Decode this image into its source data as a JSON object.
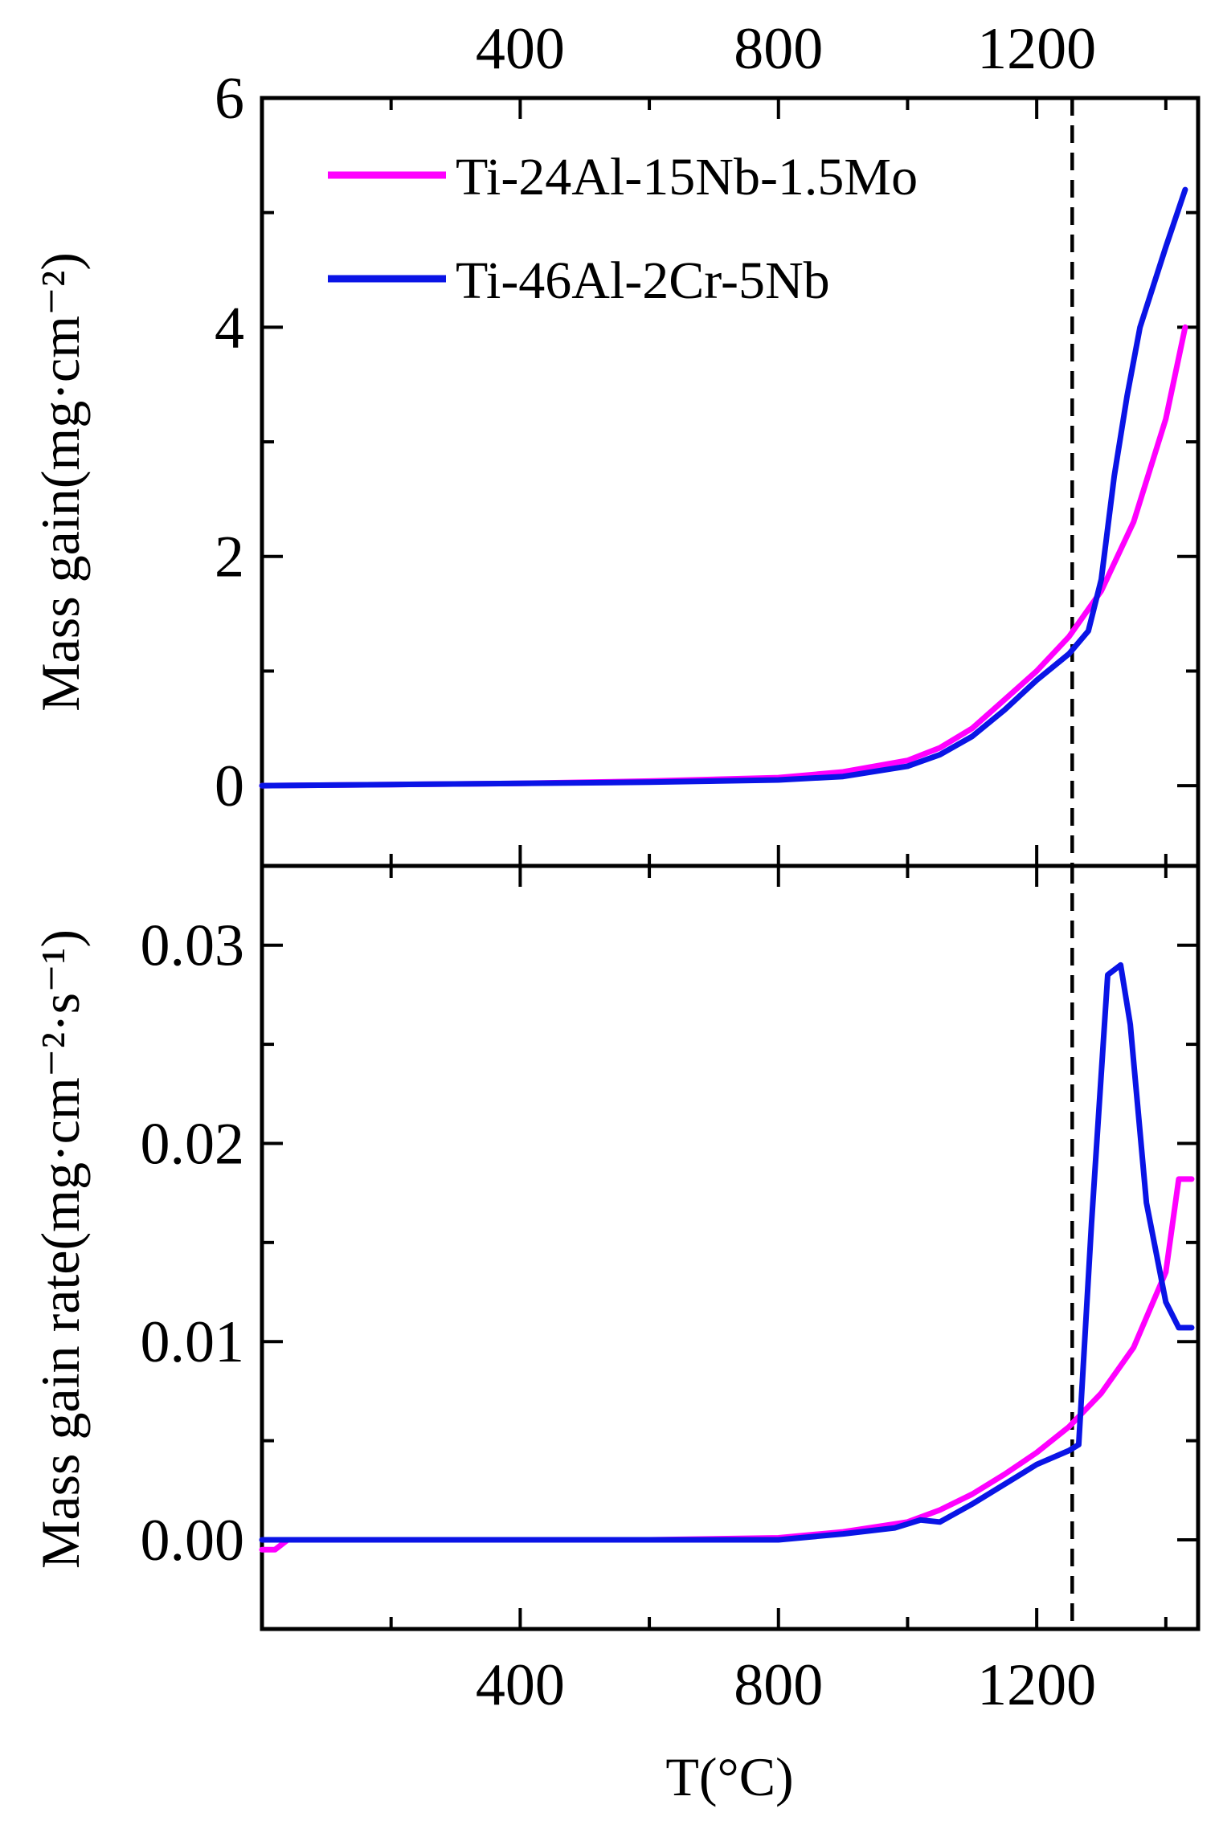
{
  "colors": {
    "alloy_a": "#ff00ff",
    "alloy_b": "#0a14e6",
    "axes": "#000000"
  },
  "chart_data": [
    {
      "type": "line",
      "panel": "top",
      "ylabel": "Mass gain(mg·cm⁻²)",
      "xlabel": "",
      "xlim": [
        0,
        1450
      ],
      "ylim": [
        -0.7,
        6
      ],
      "xticks": [
        400,
        800,
        1200
      ],
      "yticks": [
        0,
        2,
        4,
        6
      ],
      "top_axis_tick_labels": [
        "400",
        "800",
        "1200"
      ],
      "legend_placement": "top-left",
      "vertical_reference_line": {
        "x": 1255,
        "style": "dashed"
      },
      "series": [
        {
          "name": "Ti-24Al-15Nb-1.5Mo",
          "x": [
            0,
            200,
            400,
            600,
            800,
            900,
            1000,
            1050,
            1100,
            1150,
            1200,
            1250,
            1300,
            1350,
            1400,
            1430
          ],
          "y": [
            0,
            0.01,
            0.02,
            0.04,
            0.07,
            0.12,
            0.22,
            0.33,
            0.5,
            0.75,
            1.0,
            1.3,
            1.7,
            2.3,
            3.2,
            4.0
          ]
        },
        {
          "name": "Ti-46Al-2Cr-5Nb",
          "x": [
            0,
            200,
            400,
            600,
            800,
            900,
            1000,
            1050,
            1100,
            1150,
            1200,
            1250,
            1280,
            1300,
            1320,
            1340,
            1360,
            1400,
            1430
          ],
          "y": [
            0,
            0.01,
            0.02,
            0.03,
            0.05,
            0.08,
            0.17,
            0.27,
            0.43,
            0.66,
            0.92,
            1.15,
            1.35,
            1.8,
            2.7,
            3.4,
            4.0,
            4.7,
            5.2
          ]
        }
      ]
    },
    {
      "type": "line",
      "panel": "bottom",
      "ylabel": "Mass gain rate(mg·cm⁻²·s⁻¹)",
      "xlabel": "T(°C)",
      "xlim": [
        0,
        1450
      ],
      "ylim": [
        -0.0045,
        0.034
      ],
      "xticks": [
        400,
        800,
        1200
      ],
      "yticks": [
        0.0,
        0.01,
        0.02,
        0.03
      ],
      "ytick_labels": [
        "0.00",
        "0.01",
        "0.02",
        "0.03"
      ],
      "xtick_labels": [
        "400",
        "800",
        "1200"
      ],
      "vertical_reference_line": {
        "x": 1255,
        "style": "dashed"
      },
      "series": [
        {
          "name": "Ti-24Al-15Nb-1.5Mo",
          "x": [
            0,
            20,
            40,
            200,
            400,
            600,
            800,
            900,
            1000,
            1050,
            1100,
            1150,
            1200,
            1250,
            1300,
            1350,
            1400,
            1420,
            1440
          ],
          "y": [
            -0.0005,
            -0.0005,
            0.0,
            0.0,
            0.0,
            0.0,
            0.0001,
            0.0004,
            0.0009,
            0.0015,
            0.0023,
            0.0033,
            0.0044,
            0.0057,
            0.0074,
            0.0097,
            0.0135,
            0.0182,
            0.0182
          ]
        },
        {
          "name": "Ti-46Al-2Cr-5Nb",
          "x": [
            0,
            200,
            400,
            600,
            800,
            900,
            980,
            1020,
            1050,
            1100,
            1150,
            1200,
            1250,
            1265,
            1285,
            1310,
            1330,
            1345,
            1370,
            1400,
            1420,
            1440
          ],
          "y": [
            0.0,
            0.0,
            0.0,
            0.0,
            0.0,
            0.0003,
            0.0006,
            0.001,
            0.0009,
            0.0018,
            0.0028,
            0.0038,
            0.0045,
            0.0048,
            0.016,
            0.0285,
            0.029,
            0.026,
            0.017,
            0.012,
            0.0107,
            0.0107
          ]
        }
      ]
    }
  ]
}
